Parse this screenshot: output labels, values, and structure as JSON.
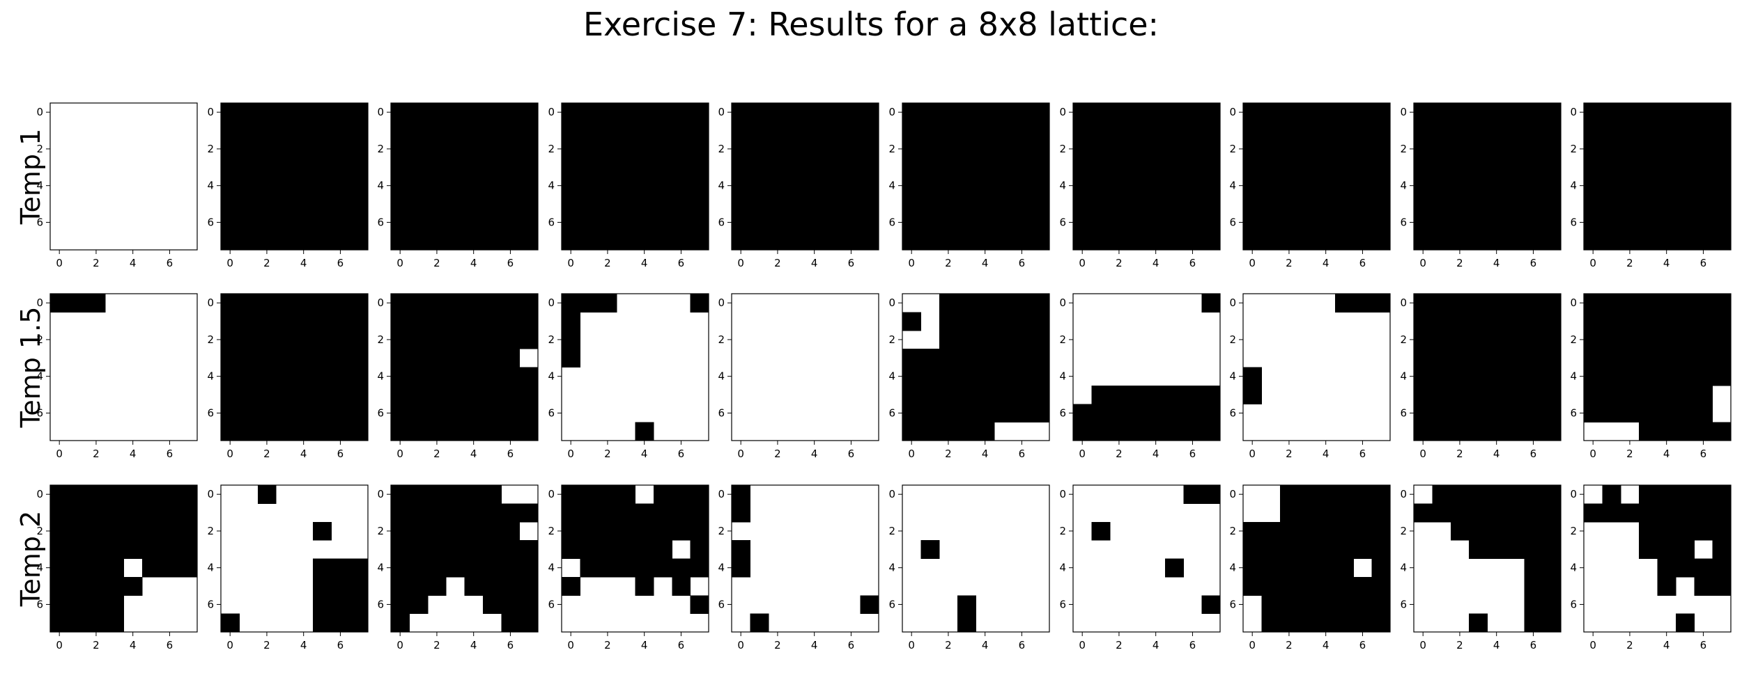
{
  "figure": {
    "title": "Exercise 7: Results for a 8x8 lattice:"
  },
  "chart_data": {
    "type": "heatmap",
    "colormap": {
      "0": "#ffffff",
      "1": "#000000"
    },
    "lattice_size": 8,
    "x_ticks": [
      "0",
      "2",
      "4",
      "6"
    ],
    "y_ticks": [
      "0",
      "2",
      "4",
      "6"
    ],
    "rows": [
      {
        "label": "Temp 1",
        "panels": [
          [
            "00000000",
            "00000000",
            "00000000",
            "00000000",
            "00000000",
            "00000000",
            "00000000",
            "00000000"
          ],
          [
            "11111111",
            "11111111",
            "11111111",
            "11111111",
            "11111111",
            "11111111",
            "11111111",
            "11111111"
          ],
          [
            "11111111",
            "11111111",
            "11111111",
            "11111111",
            "11111111",
            "11111111",
            "11111111",
            "11111111"
          ],
          [
            "11111111",
            "11111111",
            "11111111",
            "11111111",
            "11111111",
            "11111111",
            "11111111",
            "11111111"
          ],
          [
            "11111111",
            "11111111",
            "11111111",
            "11111111",
            "11111111",
            "11111111",
            "11111111",
            "11111111"
          ],
          [
            "11111111",
            "11111111",
            "11111111",
            "11111111",
            "11111111",
            "11111111",
            "11111111",
            "11111111"
          ],
          [
            "11111111",
            "11111111",
            "11111111",
            "11111111",
            "11111111",
            "11111111",
            "11111111",
            "11111111"
          ],
          [
            "11111111",
            "11111111",
            "11111111",
            "11111111",
            "11111111",
            "11111111",
            "11111111",
            "11111111"
          ],
          [
            "11111111",
            "11111111",
            "11111111",
            "11111111",
            "11111111",
            "11111111",
            "11111111",
            "11111111"
          ],
          [
            "11111111",
            "11111111",
            "11111111",
            "11111111",
            "11111111",
            "11111111",
            "11111111",
            "11111111"
          ]
        ]
      },
      {
        "label": "Temp 1.5",
        "panels": [
          [
            "11100000",
            "00000000",
            "00000000",
            "00000000",
            "00000000",
            "00000000",
            "00000000",
            "00000000"
          ],
          [
            "11111111",
            "11111111",
            "11111111",
            "11111111",
            "11111111",
            "11111111",
            "11111111",
            "11111111"
          ],
          [
            "11111111",
            "11111111",
            "11111111",
            "11111110",
            "11111111",
            "11111111",
            "11111111",
            "11111111"
          ],
          [
            "11100001",
            "10000000",
            "10000000",
            "10000000",
            "00000000",
            "00000000",
            "00000000",
            "00001000"
          ],
          [
            "00000000",
            "00000000",
            "00000000",
            "00000000",
            "00000000",
            "00000000",
            "00000000",
            "00000000"
          ],
          [
            "00111111",
            "10111111",
            "00111111",
            "11111111",
            "11111111",
            "11111111",
            "11111111",
            "11111000"
          ],
          [
            "00000001",
            "00000000",
            "00000000",
            "00000000",
            "00000000",
            "01111111",
            "11111111",
            "11111111"
          ],
          [
            "00000111",
            "00000000",
            "00000000",
            "00000000",
            "10000000",
            "10000000",
            "00000000",
            "00000000"
          ],
          [
            "11111111",
            "11111111",
            "11111111",
            "11111111",
            "11111111",
            "11111111",
            "11111111",
            "11111111"
          ],
          [
            "11111111",
            "11111111",
            "11111111",
            "11111111",
            "11111111",
            "11111110",
            "11111110",
            "00011111"
          ]
        ]
      },
      {
        "label": "Temp 2",
        "panels": [
          [
            "11111111",
            "11111111",
            "11111111",
            "11111111",
            "11110111",
            "11111000",
            "11110000",
            "11110000"
          ],
          [
            "00100000",
            "00000000",
            "00000100",
            "00000000",
            "00000111",
            "00000111",
            "00000111",
            "10000111"
          ],
          [
            "11111100",
            "11111111",
            "11111110",
            "11111111",
            "11111111",
            "11101111",
            "11000111",
            "10000011"
          ],
          [
            "11110111",
            "11111111",
            "11111111",
            "11111101",
            "01111111",
            "10001010",
            "00000001",
            "00000000"
          ],
          [
            "10000000",
            "10000000",
            "00000000",
            "10000000",
            "10000000",
            "00000000",
            "00000001",
            "01000000"
          ],
          [
            "00000000",
            "00000000",
            "00000000",
            "01000000",
            "00000000",
            "00000000",
            "00010000",
            "00010000"
          ],
          [
            "00000011",
            "00000000",
            "01000000",
            "00000000",
            "00000100",
            "00000000",
            "00000001",
            "00000000"
          ],
          [
            "00111111",
            "00111111",
            "11111111",
            "11111111",
            "11111101",
            "11111111",
            "01111111",
            "01111111"
          ],
          [
            "01111111",
            "11111111",
            "00111111",
            "00011111",
            "00000011",
            "00000011",
            "00000011",
            "00010011"
          ],
          [
            "01011111",
            "11111111",
            "00011111",
            "00011101",
            "00001111",
            "00001011",
            "00000000",
            "00000100"
          ]
        ]
      }
    ]
  }
}
